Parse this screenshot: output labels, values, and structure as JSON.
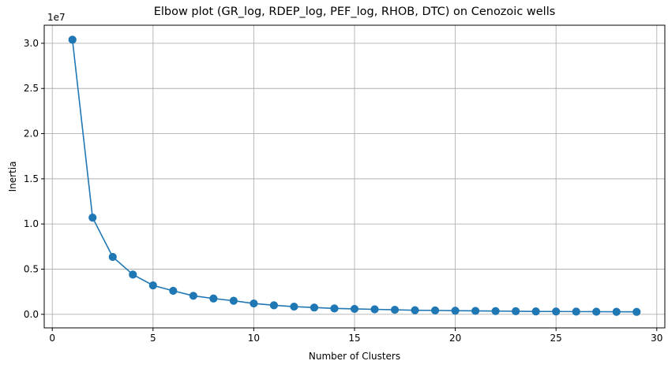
{
  "chart_data": {
    "type": "line",
    "title": "Elbow plot (GR_log, RDEP_log, PEF_log, RHOB, DTC) on Cenozoic wells",
    "xlabel": "Number of Clusters",
    "ylabel": "Inertia",
    "y_offset_label": "1e7",
    "xlim": [
      -0.4,
      30.4
    ],
    "ylim": [
      -1500000,
      32000000
    ],
    "xticks": [
      0,
      5,
      10,
      15,
      20,
      25,
      30
    ],
    "xtick_labels": [
      "0",
      "5",
      "10",
      "15",
      "20",
      "25",
      "30"
    ],
    "yticks": [
      0,
      5000000,
      10000000,
      15000000,
      20000000,
      25000000,
      30000000
    ],
    "ytick_labels": [
      "0.0",
      "0.5",
      "1.0",
      "1.5",
      "2.0",
      "2.5",
      "3.0"
    ],
    "grid": true,
    "marker": "circle",
    "series": [
      {
        "color": "#1f77b4",
        "x": [
          1,
          2,
          3,
          4,
          5,
          6,
          7,
          8,
          9,
          10,
          11,
          12,
          13,
          14,
          15,
          16,
          17,
          18,
          19,
          20,
          21,
          22,
          23,
          24,
          25,
          26,
          27,
          28,
          29
        ],
        "y": [
          30400000,
          10700000,
          6350000,
          4400000,
          3200000,
          2600000,
          2050000,
          1750000,
          1500000,
          1200000,
          1000000,
          850000,
          750000,
          650000,
          600000,
          550000,
          500000,
          450000,
          430000,
          400000,
          380000,
          360000,
          340000,
          320000,
          310000,
          300000,
          290000,
          280000,
          270000
        ]
      }
    ]
  }
}
